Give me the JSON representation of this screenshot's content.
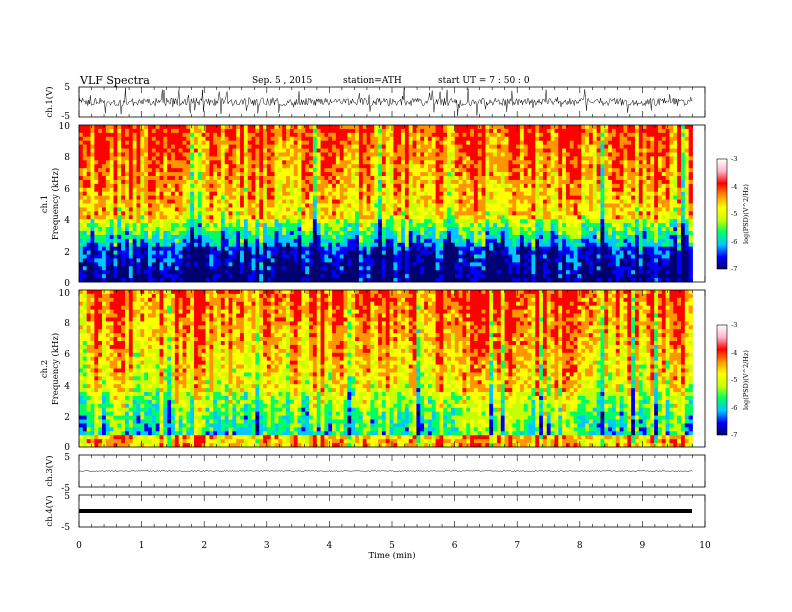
{
  "header": {
    "title": "VLF  Spectra",
    "date": "Sep. 5  , 2015",
    "station": "station=ATH",
    "start": "start  UT  =   7  : 50 : 0"
  },
  "chart_data": {
    "type": "heatmap",
    "xlabel": "Time  (min)",
    "xlim": [
      0,
      10
    ],
    "x_ticks": [
      "0",
      "1",
      "2",
      "3",
      "4",
      "5",
      "6",
      "7",
      "8",
      "9",
      "10"
    ],
    "data_end_min": 9.8,
    "panels": [
      {
        "kind": "waveform",
        "ylabel": "ch.1(V)",
        "ylim": [
          -5,
          5
        ],
        "y_ticks": [
          "5",
          "-5"
        ],
        "amplitude": "large"
      },
      {
        "kind": "spectrogram",
        "ylabel_top": "ch.1",
        "ylabel": "Frequency  (kHz)",
        "ylim": [
          0,
          10
        ],
        "y_ticks": [
          "10",
          "8",
          "6",
          "4",
          "2",
          "0"
        ],
        "colorbar_label": "log(PSD)(V^2/Hz)",
        "colorbar_range": [
          -7,
          -3
        ],
        "colorbar_ticks": [
          "-3",
          "-4",
          "-5",
          "-6",
          "-7"
        ]
      },
      {
        "kind": "spectrogram",
        "ylabel_top": "ch.2",
        "ylabel": "Frequency  (kHz)",
        "ylim": [
          0,
          10
        ],
        "y_ticks": [
          "10",
          "8",
          "6",
          "4",
          "2",
          "0"
        ],
        "colorbar_label": "log(PSD)(V^2/Hz)",
        "colorbar_range": [
          -7,
          -3
        ],
        "colorbar_ticks": [
          "-3",
          "-4",
          "-5",
          "-6",
          "-7"
        ]
      },
      {
        "kind": "waveform",
        "ylabel": "ch.3(V)",
        "ylim": [
          -5,
          5
        ],
        "y_ticks": [
          "5",
          "-5"
        ],
        "amplitude": "small"
      },
      {
        "kind": "waveform",
        "ylabel": "ch.4(V)",
        "ylim": [
          -5,
          5
        ],
        "y_ticks": [
          "5",
          "-5"
        ],
        "amplitude": "flat"
      }
    ],
    "colormap": [
      "#000070",
      "#0000ff",
      "#00c8ff",
      "#00ff64",
      "#c8ff00",
      "#ffff00",
      "#ff9600",
      "#ff0000",
      "#ffb4c8",
      "#ffffff"
    ]
  }
}
